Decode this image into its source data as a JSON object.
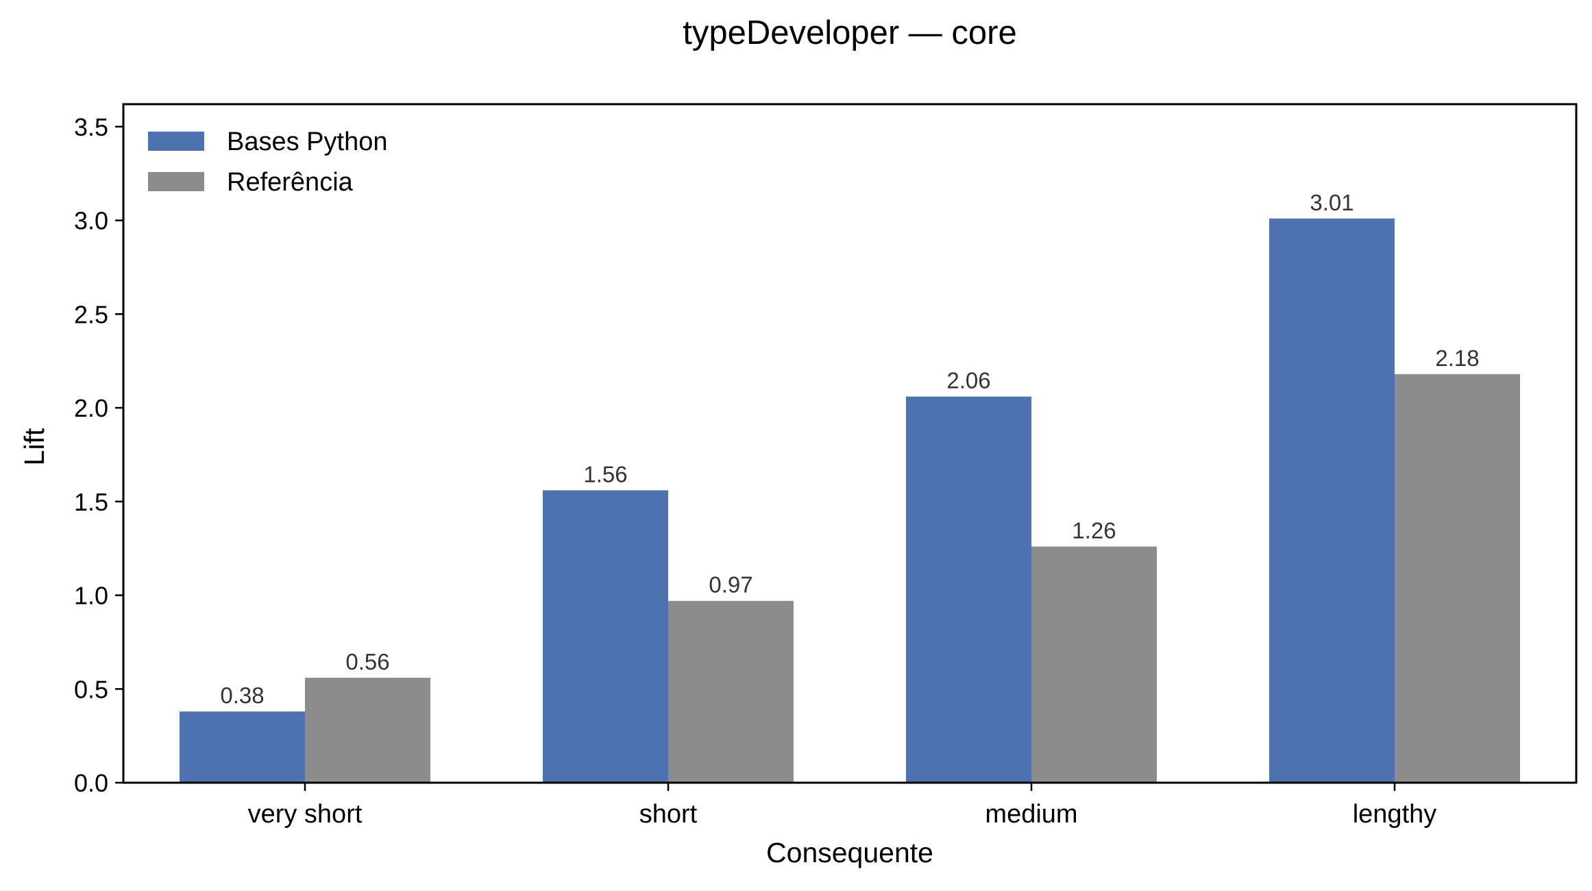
{
  "chart_data": {
    "type": "bar",
    "title": "typeDeveloper — core",
    "xlabel": "Consequente",
    "ylabel": "Lift",
    "categories": [
      "very short",
      "short",
      "medium",
      "lengthy"
    ],
    "series": [
      {
        "name": "Bases Python",
        "values": [
          0.38,
          1.56,
          2.06,
          3.01
        ],
        "color": "#4c72b0"
      },
      {
        "name": "Referência",
        "values": [
          0.56,
          0.97,
          1.26,
          2.18
        ],
        "color": "#8c8c8c"
      }
    ],
    "ylim": [
      0,
      3.62
    ],
    "yticks": [
      0.0,
      0.5,
      1.0,
      1.5,
      2.0,
      2.5,
      3.0,
      3.5
    ],
    "ytick_labels": [
      "0.0",
      "0.5",
      "1.0",
      "1.5",
      "2.0",
      "2.5",
      "3.0",
      "3.5"
    ],
    "grid": false,
    "legend_position": "top-left",
    "data_label_color": "#333333"
  }
}
